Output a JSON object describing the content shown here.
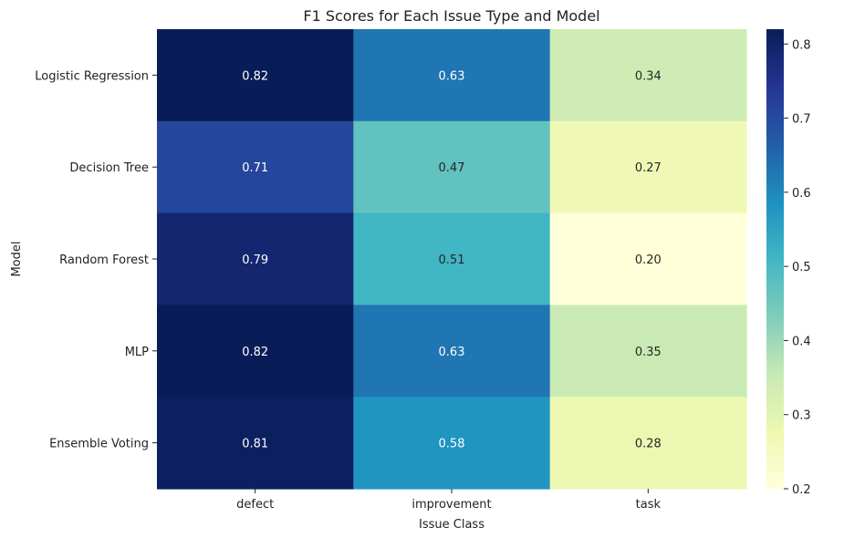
{
  "chart_data": {
    "type": "heatmap",
    "title": "F1 Scores for Each Issue Type and Model",
    "xlabel": "Issue Class",
    "ylabel": "Model",
    "columns": [
      "defect",
      "improvement",
      "task"
    ],
    "rows": [
      "Logistic Regression",
      "Decision Tree",
      "Random Forest",
      "MLP",
      "Ensemble Voting"
    ],
    "values": [
      [
        0.82,
        0.63,
        0.34
      ],
      [
        0.71,
        0.47,
        0.27
      ],
      [
        0.79,
        0.51,
        0.2
      ],
      [
        0.82,
        0.63,
        0.35
      ],
      [
        0.81,
        0.58,
        0.28
      ]
    ],
    "value_labels": [
      [
        "0.82",
        "0.63",
        "0.34"
      ],
      [
        "0.71",
        "0.47",
        "0.27"
      ],
      [
        "0.79",
        "0.51",
        "0.20"
      ],
      [
        "0.82",
        "0.63",
        "0.35"
      ],
      [
        "0.81",
        "0.58",
        "0.28"
      ]
    ],
    "colormap": "YlGnBu",
    "colorbar": {
      "min": 0.2,
      "max": 0.82,
      "ticks": [
        0.2,
        0.3,
        0.4,
        0.5,
        0.6,
        0.7,
        0.8
      ],
      "tick_labels": [
        "0.2",
        "0.3",
        "0.4",
        "0.5",
        "0.6",
        "0.7",
        "0.8"
      ]
    }
  }
}
